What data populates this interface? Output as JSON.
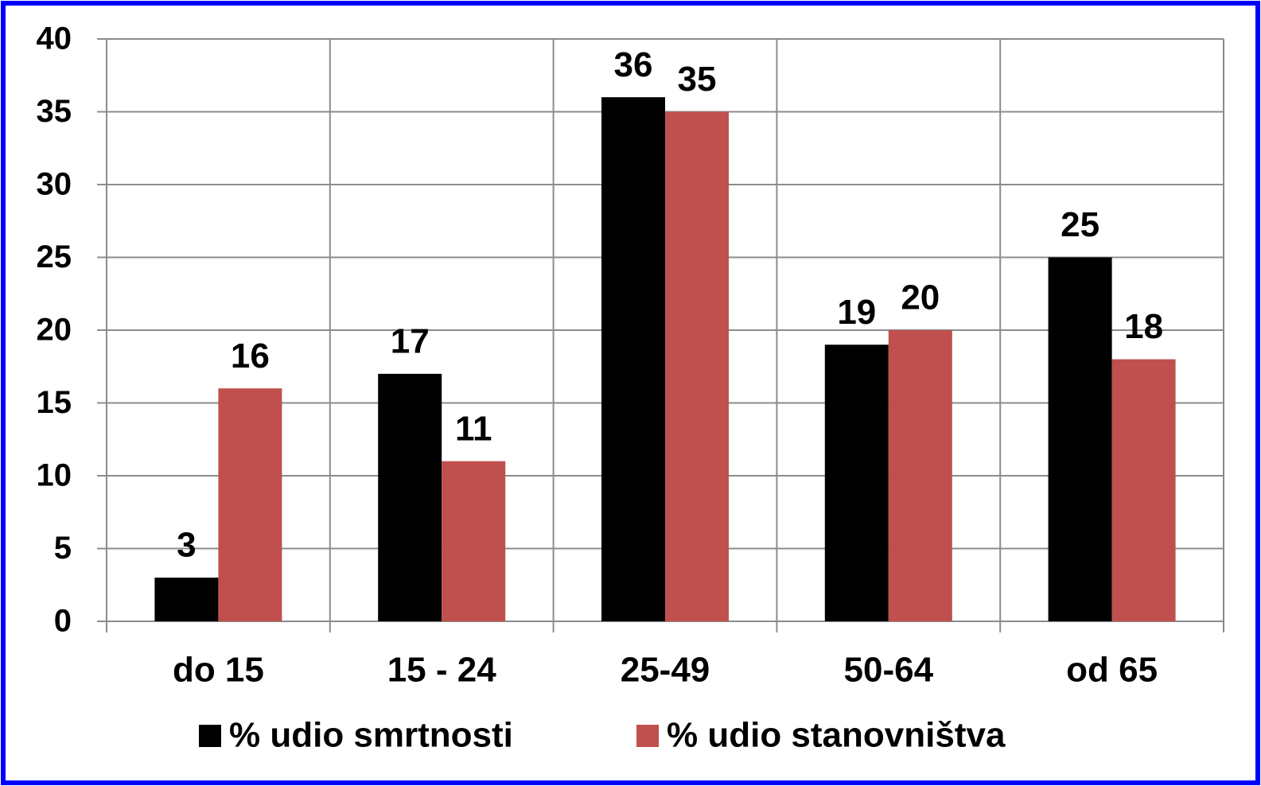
{
  "chart_data": {
    "type": "bar",
    "categories": [
      "do 15",
      "15 - 24",
      "25-49",
      "50-64",
      "od 65"
    ],
    "series": [
      {
        "name": "% udio smrtnosti",
        "color": "#000000",
        "values": [
          3,
          17,
          36,
          19,
          25
        ]
      },
      {
        "name": "% udio stanovništva",
        "color": "#c0504d",
        "values": [
          16,
          11,
          35,
          20,
          18
        ]
      }
    ],
    "ylim": [
      0,
      40
    ],
    "yticks": [
      0,
      5,
      10,
      15,
      20,
      25,
      30,
      35,
      40
    ],
    "grid": true,
    "legend": "bottom"
  }
}
